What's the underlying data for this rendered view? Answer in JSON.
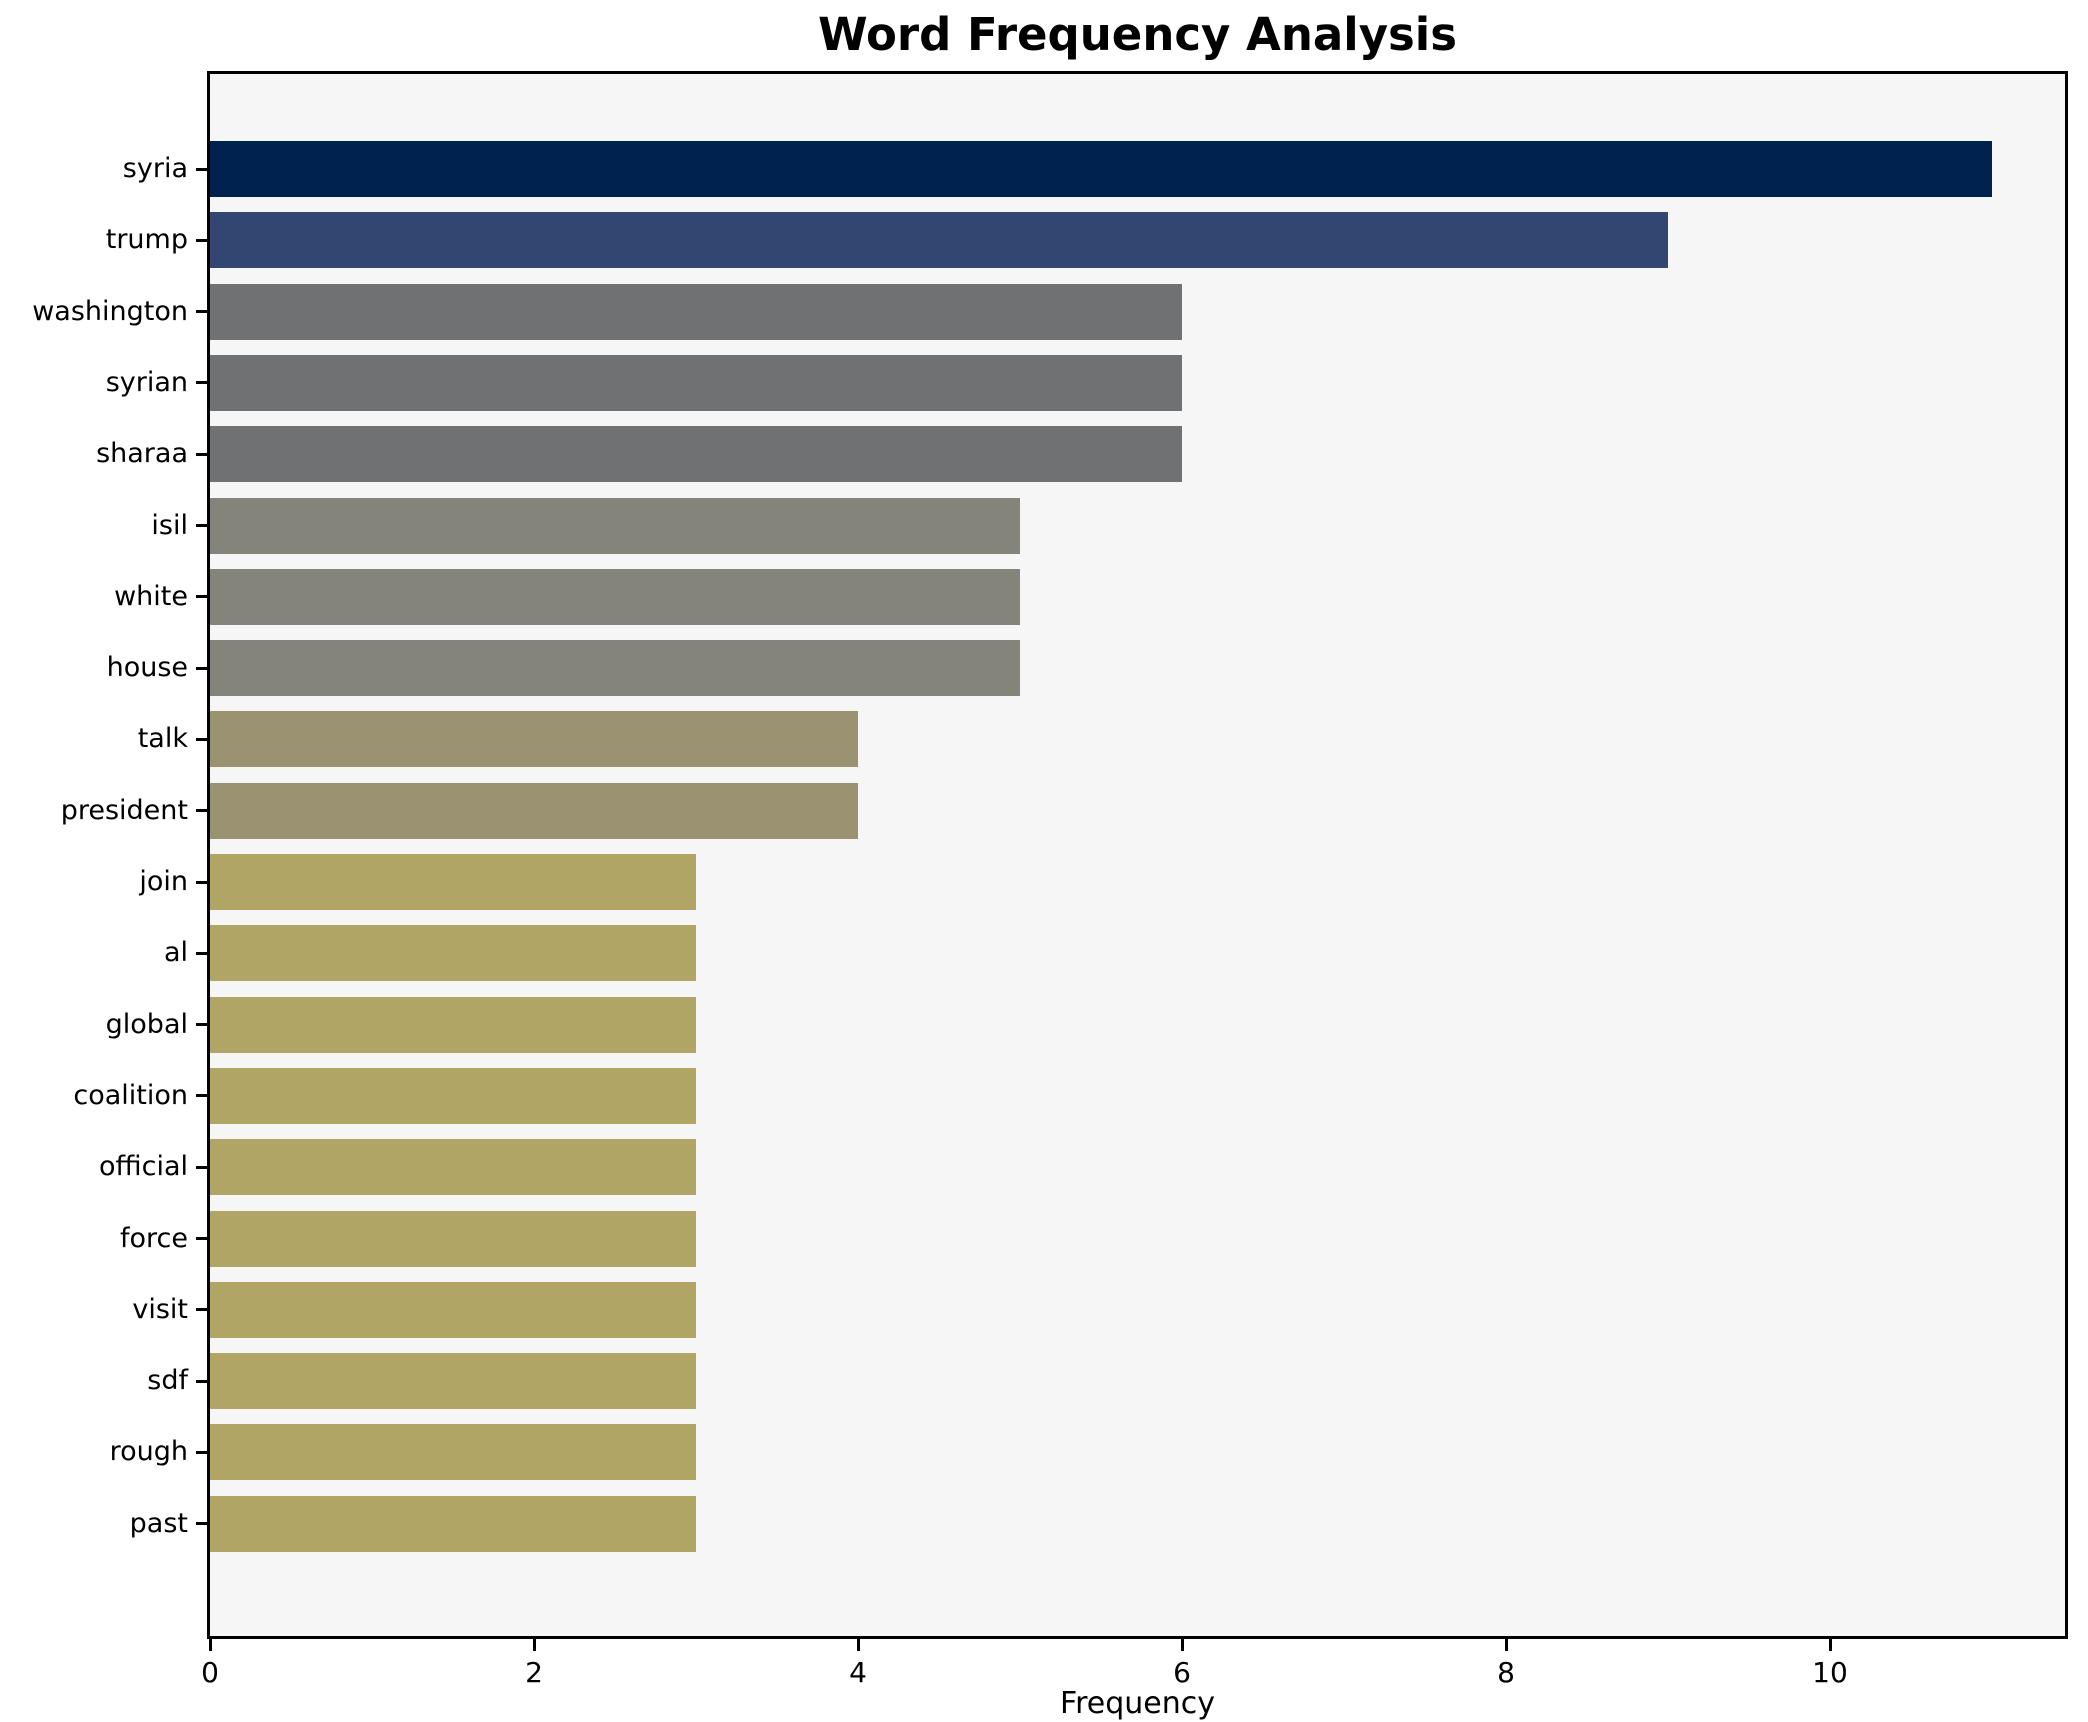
{
  "chart_data": {
    "type": "bar",
    "orientation": "horizontal",
    "title": "Word Frequency Analysis",
    "xlabel": "Frequency",
    "ylabel": "",
    "categories": [
      "syria",
      "trump",
      "washington",
      "syrian",
      "sharaa",
      "isil",
      "white",
      "house",
      "talk",
      "president",
      "join",
      "al",
      "global",
      "coalition",
      "official",
      "force",
      "visit",
      "sdf",
      "rough",
      "past"
    ],
    "values": [
      11,
      9,
      6,
      6,
      6,
      5,
      5,
      5,
      4,
      4,
      3,
      3,
      3,
      3,
      3,
      3,
      3,
      3,
      3,
      3
    ],
    "bar_colors": [
      "#00224e",
      "#334571",
      "#707173",
      "#707173",
      "#707173",
      "#85847a",
      "#85847a",
      "#85847a",
      "#9a9271",
      "#9a9271",
      "#b1a566",
      "#b1a566",
      "#b1a566",
      "#b1a566",
      "#b1a566",
      "#b1a566",
      "#b1a566",
      "#b1a566",
      "#b1a566",
      "#b1a566"
    ],
    "xlim": [
      0,
      11.45
    ],
    "xticks": [
      0,
      2,
      4,
      6,
      8,
      10
    ],
    "grid": false,
    "legend": null,
    "colors": {
      "plot_background": "#f6f6f7",
      "figure_background": "#ffffff",
      "spine": "#000000",
      "text": "#000000"
    }
  }
}
